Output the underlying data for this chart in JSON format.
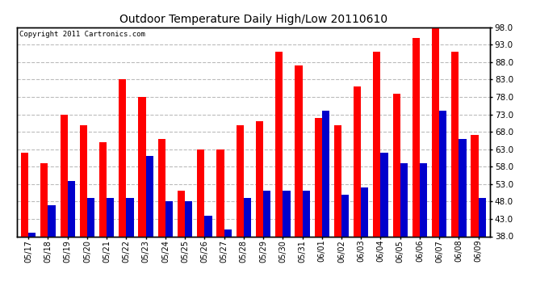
{
  "title": "Outdoor Temperature Daily High/Low 20110610",
  "copyright": "Copyright 2011 Cartronics.com",
  "dates": [
    "05/17",
    "05/18",
    "05/19",
    "05/20",
    "05/21",
    "05/22",
    "05/23",
    "05/24",
    "05/25",
    "05/26",
    "05/27",
    "05/28",
    "05/29",
    "05/30",
    "05/31",
    "06/01",
    "06/02",
    "06/03",
    "06/04",
    "06/05",
    "06/06",
    "06/07",
    "06/08",
    "06/09"
  ],
  "highs": [
    62,
    59,
    73,
    70,
    65,
    83,
    78,
    66,
    51,
    63,
    63,
    70,
    71,
    91,
    87,
    72,
    70,
    81,
    91,
    79,
    95,
    98,
    91,
    67
  ],
  "lows": [
    39,
    47,
    54,
    49,
    49,
    49,
    61,
    48,
    48,
    44,
    40,
    49,
    51,
    51,
    51,
    74,
    50,
    52,
    62,
    59,
    59,
    74,
    66,
    49
  ],
  "high_color": "#ff0000",
  "low_color": "#0000cc",
  "bg_color": "#ffffff",
  "grid_color": "#bbbbbb",
  "ymin": 38,
  "ymax": 98,
  "yticks": [
    38.0,
    43.0,
    48.0,
    53.0,
    58.0,
    63.0,
    68.0,
    73.0,
    78.0,
    83.0,
    88.0,
    93.0,
    98.0
  ],
  "bar_width": 0.38,
  "figsize": [
    6.9,
    3.75
  ],
  "dpi": 100
}
